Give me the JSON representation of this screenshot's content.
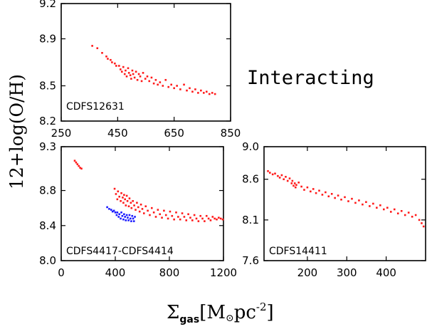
{
  "figure": {
    "ylabel": "12+log(O/H)",
    "xlabel_prefix": "Σ",
    "xlabel_sub": "gas",
    "xlabel_units": "[M",
    "xlabel_sun": "⊙",
    "xlabel_tail": "pc",
    "xlabel_exp": "-2",
    "xlabel_close": "]",
    "annotation": "Interacting"
  },
  "colors": {
    "red": "#ff1a1a",
    "blue": "#1a1aff",
    "axis": "#000000"
  },
  "chart_data": [
    {
      "type": "scatter",
      "id": "cdfs12631",
      "panel_label": "CDFS12631",
      "xlim": [
        250,
        850
      ],
      "ylim": [
        8.2,
        9.2
      ],
      "xticks": [
        250,
        450,
        650,
        850
      ],
      "yticks": [
        8.2,
        8.5,
        8.9,
        9.2
      ],
      "xtick_labels": [
        "250",
        "450",
        "650",
        "850"
      ],
      "ytick_labels": [
        "8.2",
        "8.5",
        "8.9",
        "9.2"
      ],
      "series": [
        {
          "color": "#ff1a1a",
          "points": [
            [
              360,
              8.84
            ],
            [
              378,
              8.82
            ],
            [
              395,
              8.78
            ],
            [
              410,
              8.75
            ],
            [
              415,
              8.73
            ],
            [
              425,
              8.72
            ],
            [
              430,
              8.7
            ],
            [
              440,
              8.69
            ],
            [
              445,
              8.67
            ],
            [
              455,
              8.67
            ],
            [
              460,
              8.64
            ],
            [
              465,
              8.62
            ],
            [
              470,
              8.66
            ],
            [
              475,
              8.6
            ],
            [
              478,
              8.63
            ],
            [
              482,
              8.58
            ],
            [
              487,
              8.65
            ],
            [
              490,
              8.61
            ],
            [
              495,
              8.59
            ],
            [
              498,
              8.56
            ],
            [
              502,
              8.63
            ],
            [
              505,
              8.6
            ],
            [
              510,
              8.57
            ],
            [
              515,
              8.62
            ],
            [
              520,
              8.55
            ],
            [
              525,
              8.6
            ],
            [
              530,
              8.58
            ],
            [
              535,
              8.54
            ],
            [
              540,
              8.61
            ],
            [
              548,
              8.56
            ],
            [
              555,
              8.58
            ],
            [
              562,
              8.54
            ],
            [
              570,
              8.57
            ],
            [
              578,
              8.52
            ],
            [
              585,
              8.55
            ],
            [
              592,
              8.51
            ],
            [
              600,
              8.53
            ],
            [
              610,
              8.5
            ],
            [
              620,
              8.55
            ],
            [
              630,
              8.49
            ],
            [
              640,
              8.51
            ],
            [
              650,
              8.48
            ],
            [
              660,
              8.5
            ],
            [
              672,
              8.47
            ],
            [
              685,
              8.51
            ],
            [
              695,
              8.46
            ],
            [
              705,
              8.48
            ],
            [
              715,
              8.45
            ],
            [
              725,
              8.47
            ],
            [
              735,
              8.44
            ],
            [
              745,
              8.46
            ],
            [
              755,
              8.44
            ],
            [
              765,
              8.45
            ],
            [
              775,
              8.43
            ],
            [
              785,
              8.44
            ],
            [
              795,
              8.43
            ]
          ]
        }
      ]
    },
    {
      "type": "scatter",
      "id": "cdfs4417-cdfs4414",
      "panel_label": "CDFS4417-CDFS4414",
      "xlim": [
        0,
        1200
      ],
      "ylim": [
        8.0,
        9.3
      ],
      "xticks": [
        0,
        400,
        800,
        1200
      ],
      "yticks": [
        8.0,
        8.4,
        8.8,
        9.3
      ],
      "xtick_labels": [
        "0",
        "400",
        "800",
        "1200"
      ],
      "ytick_labels": [
        "8.0",
        "8.4",
        "8.8",
        "9.3"
      ],
      "series": [
        {
          "color": "#ff1a1a",
          "points": [
            [
              100,
              9.14
            ],
            [
              110,
              9.12
            ],
            [
              120,
              9.1
            ],
            [
              130,
              9.08
            ],
            [
              140,
              9.06
            ],
            [
              150,
              9.05
            ],
            [
              395,
              8.82
            ],
            [
              405,
              8.76
            ],
            [
              415,
              8.7
            ],
            [
              420,
              8.79
            ],
            [
              430,
              8.73
            ],
            [
              440,
              8.68
            ],
            [
              445,
              8.77
            ],
            [
              455,
              8.72
            ],
            [
              460,
              8.66
            ],
            [
              465,
              8.75
            ],
            [
              472,
              8.7
            ],
            [
              478,
              8.63
            ],
            [
              485,
              8.74
            ],
            [
              490,
              8.68
            ],
            [
              500,
              8.62
            ],
            [
              505,
              8.71
            ],
            [
              515,
              8.66
            ],
            [
              520,
              8.6
            ],
            [
              530,
              8.68
            ],
            [
              540,
              8.63
            ],
            [
              550,
              8.58
            ],
            [
              560,
              8.66
            ],
            [
              570,
              8.61
            ],
            [
              580,
              8.56
            ],
            [
              590,
              8.64
            ],
            [
              600,
              8.59
            ],
            [
              612,
              8.54
            ],
            [
              625,
              8.62
            ],
            [
              640,
              8.57
            ],
            [
              655,
              8.52
            ],
            [
              670,
              8.6
            ],
            [
              685,
              8.55
            ],
            [
              700,
              8.5
            ],
            [
              715,
              8.58
            ],
            [
              730,
              8.53
            ],
            [
              745,
              8.49
            ],
            [
              760,
              8.57
            ],
            [
              775,
              8.52
            ],
            [
              790,
              8.48
            ],
            [
              805,
              8.56
            ],
            [
              820,
              8.51
            ],
            [
              835,
              8.47
            ],
            [
              850,
              8.55
            ],
            [
              865,
              8.5
            ],
            [
              880,
              8.47
            ],
            [
              895,
              8.54
            ],
            [
              910,
              8.5
            ],
            [
              925,
              8.46
            ],
            [
              940,
              8.53
            ],
            [
              955,
              8.49
            ],
            [
              970,
              8.46
            ],
            [
              985,
              8.52
            ],
            [
              1000,
              8.48
            ],
            [
              1015,
              8.45
            ],
            [
              1030,
              8.51
            ],
            [
              1045,
              8.48
            ],
            [
              1060,
              8.45
            ],
            [
              1075,
              8.51
            ],
            [
              1090,
              8.48
            ],
            [
              1105,
              8.46
            ],
            [
              1120,
              8.5
            ],
            [
              1135,
              8.48
            ],
            [
              1150,
              8.47
            ],
            [
              1165,
              8.49
            ],
            [
              1180,
              8.48
            ],
            [
              1195,
              8.47
            ]
          ]
        },
        {
          "color": "#1a1aff",
          "points": [
            [
              340,
              8.61
            ],
            [
              355,
              8.59
            ],
            [
              370,
              8.58
            ],
            [
              380,
              8.56
            ],
            [
              390,
              8.57
            ],
            [
              400,
              8.55
            ],
            [
              410,
              8.52
            ],
            [
              415,
              8.55
            ],
            [
              425,
              8.5
            ],
            [
              430,
              8.53
            ],
            [
              440,
              8.48
            ],
            [
              445,
              8.55
            ],
            [
              452,
              8.51
            ],
            [
              460,
              8.47
            ],
            [
              465,
              8.53
            ],
            [
              472,
              8.5
            ],
            [
              478,
              8.46
            ],
            [
              485,
              8.52
            ],
            [
              492,
              8.49
            ],
            [
              498,
              8.46
            ],
            [
              505,
              8.52
            ],
            [
              512,
              8.48
            ],
            [
              518,
              8.45
            ],
            [
              525,
              8.51
            ],
            [
              532,
              8.48
            ],
            [
              538,
              8.45
            ],
            [
              545,
              8.5
            ]
          ]
        }
      ]
    },
    {
      "type": "scatter",
      "id": "cdfs14411",
      "panel_label": "CDFS14411",
      "xlim": [
        90,
        500
      ],
      "ylim": [
        7.6,
        9.0
      ],
      "xticks": [
        200,
        300,
        400
      ],
      "yticks": [
        7.6,
        8.1,
        8.6,
        9.0
      ],
      "xtick_labels": [
        "200",
        "300",
        "400"
      ],
      "ytick_labels": [
        "7.6",
        "8.1",
        "8.6",
        "9.0"
      ],
      "series": [
        {
          "color": "#ff1a1a",
          "points": [
            [
              100,
              8.7
            ],
            [
              105,
              8.68
            ],
            [
              112,
              8.66
            ],
            [
              118,
              8.67
            ],
            [
              125,
              8.64
            ],
            [
              130,
              8.62
            ],
            [
              135,
              8.65
            ],
            [
              140,
              8.6
            ],
            [
              145,
              8.63
            ],
            [
              150,
              8.58
            ],
            [
              155,
              8.61
            ],
            [
              160,
              8.55
            ],
            [
              162,
              8.58
            ],
            [
              165,
              8.52
            ],
            [
              168,
              8.55
            ],
            [
              170,
              8.5
            ],
            [
              172,
              8.53
            ],
            [
              178,
              8.56
            ],
            [
              185,
              8.51
            ],
            [
              192,
              8.47
            ],
            [
              200,
              8.5
            ],
            [
              208,
              8.45
            ],
            [
              215,
              8.48
            ],
            [
              222,
              8.43
            ],
            [
              230,
              8.46
            ],
            [
              238,
              8.41
            ],
            [
              246,
              8.44
            ],
            [
              254,
              8.39
            ],
            [
              262,
              8.42
            ],
            [
              270,
              8.37
            ],
            [
              278,
              8.4
            ],
            [
              286,
              8.35
            ],
            [
              295,
              8.38
            ],
            [
              304,
              8.33
            ],
            [
              313,
              8.36
            ],
            [
              322,
              8.31
            ],
            [
              331,
              8.34
            ],
            [
              340,
              8.29
            ],
            [
              349,
              8.32
            ],
            [
              358,
              8.27
            ],
            [
              367,
              8.3
            ],
            [
              376,
              8.25
            ],
            [
              385,
              8.28
            ],
            [
              394,
              8.23
            ],
            [
              403,
              8.25
            ],
            [
              412,
              8.2
            ],
            [
              421,
              8.23
            ],
            [
              430,
              8.18
            ],
            [
              439,
              8.21
            ],
            [
              448,
              8.16
            ],
            [
              457,
              8.19
            ],
            [
              466,
              8.14
            ],
            [
              475,
              8.16
            ],
            [
              484,
              8.1
            ],
            [
              490,
              8.06
            ],
            [
              495,
              8.02
            ]
          ]
        }
      ]
    }
  ]
}
